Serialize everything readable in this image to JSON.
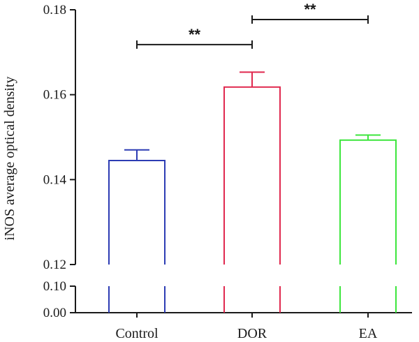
{
  "chart_data": {
    "type": "bar",
    "ylabel": "iNOS average optical density",
    "xlabel": "",
    "categories": [
      "Control",
      "DOR",
      "EA"
    ],
    "values": [
      0.1445,
      0.1618,
      0.1493
    ],
    "errors": [
      0.0025,
      0.0035,
      0.0012
    ],
    "colors": [
      "#2c3cb4",
      "#e0284e",
      "#3ce63c"
    ],
    "axis_color": "#1a1a1a",
    "y_axis_broken": true,
    "y_upper_range": [
      0.12,
      0.18
    ],
    "y_lower_range": [
      0.0,
      0.1
    ],
    "y_ticks_upper": [
      0.12,
      0.14,
      0.16,
      0.18
    ],
    "y_ticks_lower": [
      0.0,
      0.1
    ],
    "y_tick_labels_upper": [
      "0.12",
      "0.14",
      "0.16",
      "0.18"
    ],
    "y_tick_labels_lower": [
      "0.00",
      "0.10"
    ],
    "grid": false,
    "significance": [
      {
        "from": 0,
        "to": 1,
        "label": "**",
        "y": 0.1718
      },
      {
        "from": 1,
        "to": 2,
        "label": "**",
        "y": 0.1777
      }
    ]
  }
}
